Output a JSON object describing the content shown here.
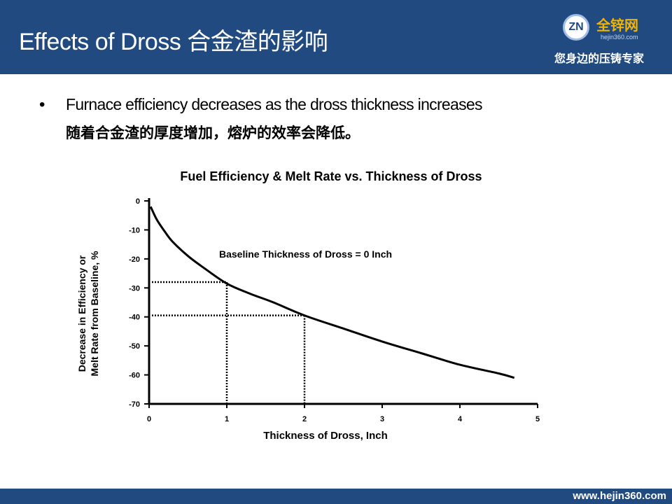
{
  "slide": {
    "title": "Effects of Dross 合金渣的影响"
  },
  "logo": {
    "badge": "ZN",
    "name": "全锌网",
    "url": "hejin360.com",
    "slogan": "您身边的压铸专家"
  },
  "bullet": {
    "text_en": "Furnace efficiency decreases as the dross thickness increases",
    "text_cn": "随着合金渣的厚度增加，熔炉的效率会降低。"
  },
  "footer": {
    "url": "www.hejin360.com"
  },
  "colors": {
    "header": "#204a80",
    "curve": "#000000"
  },
  "chart_data": {
    "type": "line",
    "title": "Fuel Efficiency & Melt Rate vs. Thickness of Dross",
    "xlabel": "Thickness of Dross, Inch",
    "ylabel_line1": "Decrease in Efficiency or",
    "ylabel_line2": "Melt Rate from Baseline, %",
    "annotation": "Baseline Thickness of Dross = 0 Inch",
    "xlim": [
      0,
      5
    ],
    "ylim": [
      -70,
      0
    ],
    "xticks": [
      "0",
      "1",
      "2",
      "3",
      "4",
      "5"
    ],
    "yticks": [
      "0",
      "-10",
      "-20",
      "-30",
      "-40",
      "-50",
      "-60",
      "-70"
    ],
    "grid": false,
    "series": [
      {
        "x": [
          0.02,
          0.1,
          0.2,
          0.3,
          0.5,
          0.7,
          1.0,
          1.3,
          1.6,
          2.0,
          2.5,
          3.0,
          3.5,
          4.0,
          4.5,
          4.7
        ],
        "y": [
          -2,
          -6.5,
          -10.5,
          -14,
          -19,
          -23,
          -28.5,
          -32,
          -35,
          -39.5,
          -44,
          -48.5,
          -52.5,
          -56.5,
          -59.5,
          -61
        ]
      }
    ],
    "reference_points": [
      {
        "x": 1,
        "y": -28
      },
      {
        "x": 2,
        "y": -39.5
      }
    ]
  }
}
